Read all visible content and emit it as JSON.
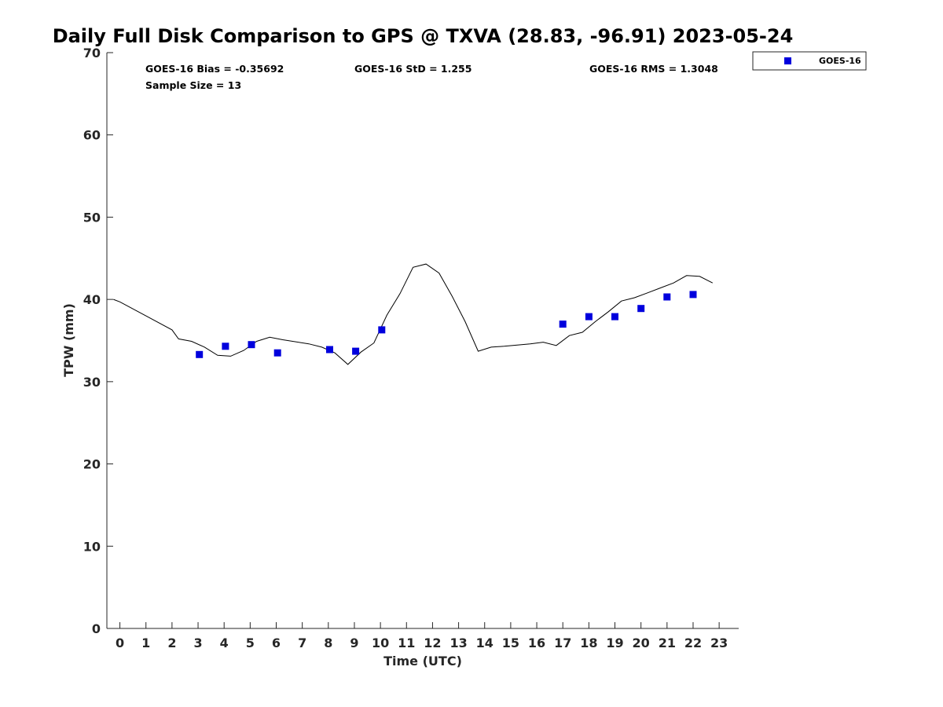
{
  "chart_data": {
    "type": "scatter",
    "title": "Daily Full Disk Comparison to GPS @ TXVA (28.83, -96.91) 2023-05-24",
    "xlabel": "Time (UTC)",
    "ylabel": "TPW (mm)",
    "xlim": [
      -0.5,
      23.75
    ],
    "ylim": [
      0,
      70
    ],
    "xticks": [
      0,
      1,
      2,
      3,
      4,
      5,
      6,
      7,
      8,
      9,
      10,
      11,
      12,
      13,
      14,
      15,
      16,
      17,
      18,
      19,
      20,
      21,
      22,
      23
    ],
    "yticks": [
      0,
      10,
      20,
      30,
      40,
      50,
      60,
      70
    ],
    "grid": false,
    "legend_position": "outside-top-right",
    "stats": {
      "bias": "GOES-16 Bias = -0.35692",
      "std": "GOES-16 StD = 1.255",
      "rms": "GOES-16 RMS = 1.3048",
      "sample": "Sample Size = 13"
    },
    "series": [
      {
        "name": "GOES-16",
        "kind": "scatter",
        "marker": "square",
        "color": "#0000dd",
        "points": [
          [
            3.05,
            33.3
          ],
          [
            4.05,
            34.3
          ],
          [
            5.05,
            34.5
          ],
          [
            6.05,
            33.5
          ],
          [
            8.05,
            33.9
          ],
          [
            9.05,
            33.7
          ],
          [
            10.05,
            36.3
          ],
          [
            17.0,
            37.0
          ],
          [
            18.0,
            37.9
          ],
          [
            19.0,
            37.9
          ],
          [
            20.0,
            38.9
          ],
          [
            21.0,
            40.3
          ],
          [
            22.0,
            40.6
          ]
        ]
      },
      {
        "kind": "line",
        "color": "#000000",
        "points": [
          [
            -0.25,
            40.0
          ],
          [
            0.0,
            39.7
          ],
          [
            1.0,
            38.0
          ],
          [
            2.0,
            36.3
          ],
          [
            2.25,
            35.2
          ],
          [
            2.75,
            34.9
          ],
          [
            3.25,
            34.2
          ],
          [
            3.75,
            33.2
          ],
          [
            4.25,
            33.1
          ],
          [
            4.75,
            33.8
          ],
          [
            5.25,
            34.9
          ],
          [
            5.75,
            35.4
          ],
          [
            6.25,
            35.1
          ],
          [
            7.25,
            34.6
          ],
          [
            7.75,
            34.2
          ],
          [
            8.25,
            33.5
          ],
          [
            8.75,
            32.1
          ],
          [
            9.25,
            33.6
          ],
          [
            9.75,
            34.7
          ],
          [
            10.25,
            38.1
          ],
          [
            10.75,
            40.7
          ],
          [
            11.25,
            43.9
          ],
          [
            11.75,
            44.3
          ],
          [
            12.25,
            43.2
          ],
          [
            12.75,
            40.4
          ],
          [
            13.25,
            37.3
          ],
          [
            13.75,
            33.7
          ],
          [
            14.25,
            34.2
          ],
          [
            14.75,
            34.3
          ],
          [
            15.75,
            34.6
          ],
          [
            16.25,
            34.8
          ],
          [
            16.75,
            34.4
          ],
          [
            17.25,
            35.6
          ],
          [
            17.75,
            36.0
          ],
          [
            18.25,
            37.3
          ],
          [
            18.75,
            38.5
          ],
          [
            19.25,
            39.8
          ],
          [
            19.75,
            40.2
          ],
          [
            20.25,
            40.8
          ],
          [
            20.75,
            41.4
          ],
          [
            21.25,
            42.0
          ],
          [
            21.75,
            42.9
          ],
          [
            22.25,
            42.8
          ],
          [
            22.75,
            42.0
          ]
        ]
      }
    ]
  }
}
